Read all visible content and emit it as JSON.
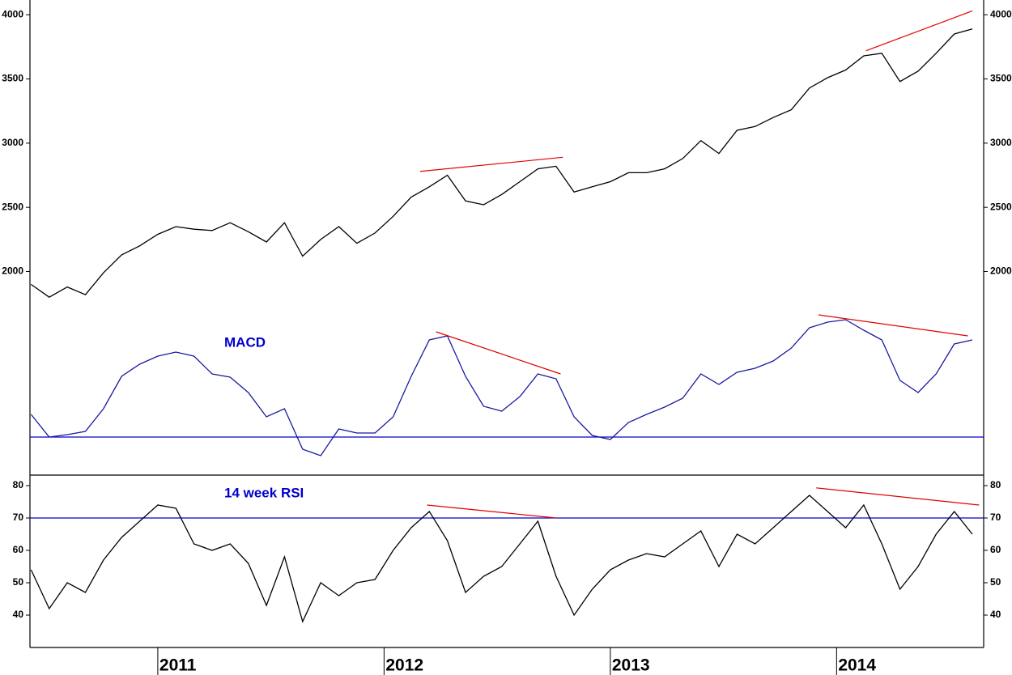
{
  "chart_data": [
    {
      "type": "line",
      "x": [
        2010.44,
        2010.52,
        2010.6,
        2010.68,
        2010.76,
        2010.84,
        2010.92,
        2011.0,
        2011.08,
        2011.16,
        2011.24,
        2011.32,
        2011.4,
        2011.48,
        2011.56,
        2011.64,
        2011.72,
        2011.8,
        2011.88,
        2011.96,
        2012.04,
        2012.12,
        2012.2,
        2012.28,
        2012.36,
        2012.44,
        2012.52,
        2012.6,
        2012.68,
        2012.76,
        2012.84,
        2012.92,
        2013.0,
        2013.08,
        2013.16,
        2013.24,
        2013.32,
        2013.4,
        2013.48,
        2013.56,
        2013.64,
        2013.72,
        2013.8,
        2013.88,
        2013.96,
        2014.04,
        2014.12,
        2014.2,
        2014.28,
        2014.36,
        2014.44,
        2014.52,
        2014.6
      ],
      "values": [
        1900,
        1800,
        1880,
        1820,
        1990,
        2130,
        2200,
        2290,
        2350,
        2330,
        2320,
        2380,
        2310,
        2230,
        2380,
        2120,
        2250,
        2350,
        2220,
        2300,
        2430,
        2580,
        2660,
        2750,
        2550,
        2520,
        2600,
        2700,
        2800,
        2820,
        2620,
        2660,
        2700,
        2770,
        2770,
        2800,
        2880,
        3020,
        2920,
        3100,
        3130,
        3200,
        3260,
        3430,
        3510,
        3570,
        3680,
        3700,
        3480,
        3560,
        3700,
        3850,
        3890
      ],
      "color": "#000000",
      "xlim": [
        2010.435,
        2014.65
      ],
      "ylim": [
        1770,
        4115
      ],
      "yticks": [
        2000,
        2500,
        3000,
        3500,
        4000
      ],
      "trend_color": "#e00000",
      "trendlines": [
        {
          "x": [
            2012.16,
            2012.79
          ],
          "y": [
            2780,
            2890
          ]
        },
        {
          "x": [
            2014.13,
            2014.6
          ],
          "y": [
            3720,
            4030
          ]
        }
      ]
    },
    {
      "type": "line",
      "label": "MACD",
      "x": [
        2010.44,
        2010.52,
        2010.6,
        2010.68,
        2010.76,
        2010.84,
        2010.92,
        2011.0,
        2011.08,
        2011.16,
        2011.24,
        2011.32,
        2011.4,
        2011.48,
        2011.56,
        2011.64,
        2011.72,
        2011.8,
        2011.88,
        2011.96,
        2012.04,
        2012.12,
        2012.2,
        2012.28,
        2012.36,
        2012.44,
        2012.52,
        2012.6,
        2012.68,
        2012.76,
        2012.84,
        2012.92,
        2013.0,
        2013.08,
        2013.16,
        2013.24,
        2013.32,
        2013.4,
        2013.48,
        2013.56,
        2013.64,
        2013.72,
        2013.8,
        2013.88,
        2013.96,
        2014.04,
        2014.12,
        2014.2,
        2014.28,
        2014.36,
        2014.44,
        2014.52,
        2014.6
      ],
      "values": [
        28,
        0,
        3,
        7,
        35,
        75,
        90,
        100,
        105,
        100,
        78,
        74,
        55,
        25,
        35,
        -15,
        -23,
        10,
        5,
        5,
        25,
        75,
        120,
        125,
        75,
        38,
        32,
        50,
        78,
        72,
        25,
        2,
        -3,
        18,
        28,
        37,
        48,
        78,
        65,
        80,
        85,
        94,
        110,
        135,
        142,
        145,
        132,
        120,
        70,
        55,
        78,
        115,
        120
      ],
      "color": "#1a1aa0",
      "xlim": [
        2010.435,
        2014.65
      ],
      "ylim": [
        -47,
        168
      ],
      "hline": 0,
      "hline_color": "#0000cc",
      "trend_color": "#e00000",
      "trendlines": [
        {
          "x": [
            2012.23,
            2012.78
          ],
          "y": [
            130,
            78
          ]
        },
        {
          "x": [
            2013.92,
            2014.58
          ],
          "y": [
            151,
            125
          ]
        }
      ]
    },
    {
      "type": "line",
      "label": "14 week RSI",
      "x": [
        2010.44,
        2010.52,
        2010.6,
        2010.68,
        2010.76,
        2010.84,
        2010.92,
        2011.0,
        2011.08,
        2011.16,
        2011.24,
        2011.32,
        2011.4,
        2011.48,
        2011.56,
        2011.64,
        2011.72,
        2011.8,
        2011.88,
        2011.96,
        2012.04,
        2012.12,
        2012.2,
        2012.28,
        2012.36,
        2012.44,
        2012.52,
        2012.6,
        2012.68,
        2012.76,
        2012.84,
        2012.92,
        2013.0,
        2013.08,
        2013.16,
        2013.24,
        2013.32,
        2013.4,
        2013.48,
        2013.56,
        2013.64,
        2013.72,
        2013.8,
        2013.88,
        2013.96,
        2014.04,
        2014.12,
        2014.2,
        2014.28,
        2014.36,
        2014.44,
        2014.52,
        2014.6
      ],
      "values": [
        54,
        42,
        50,
        47,
        57,
        64,
        69,
        74,
        73,
        62,
        60,
        62,
        56,
        43,
        58,
        38,
        50,
        46,
        50,
        51,
        60,
        67,
        72,
        63,
        47,
        52,
        55,
        62,
        69,
        52,
        40,
        48,
        54,
        57,
        59,
        58,
        62,
        66,
        55,
        65,
        62,
        67,
        72,
        77,
        72,
        67,
        74,
        62,
        48,
        55,
        65,
        72,
        65
      ],
      "color": "#000000",
      "xlim": [
        2010.435,
        2014.65
      ],
      "ylim": [
        30,
        83.25
      ],
      "yticks": [
        40,
        50,
        60,
        70,
        80
      ],
      "xticks": [
        {
          "value": 2011,
          "label": "2011"
        },
        {
          "value": 2012,
          "label": "2012"
        },
        {
          "value": 2013,
          "label": "2013"
        },
        {
          "value": 2014,
          "label": "2014"
        }
      ],
      "hline": 70,
      "hline_color": "#0000cc",
      "trend_color": "#e00000",
      "trendlines": [
        {
          "x": [
            2012.19,
            2012.76
          ],
          "y": [
            74,
            70
          ]
        },
        {
          "x": [
            2013.91,
            2014.63
          ],
          "y": [
            79.3,
            74
          ]
        }
      ]
    }
  ]
}
